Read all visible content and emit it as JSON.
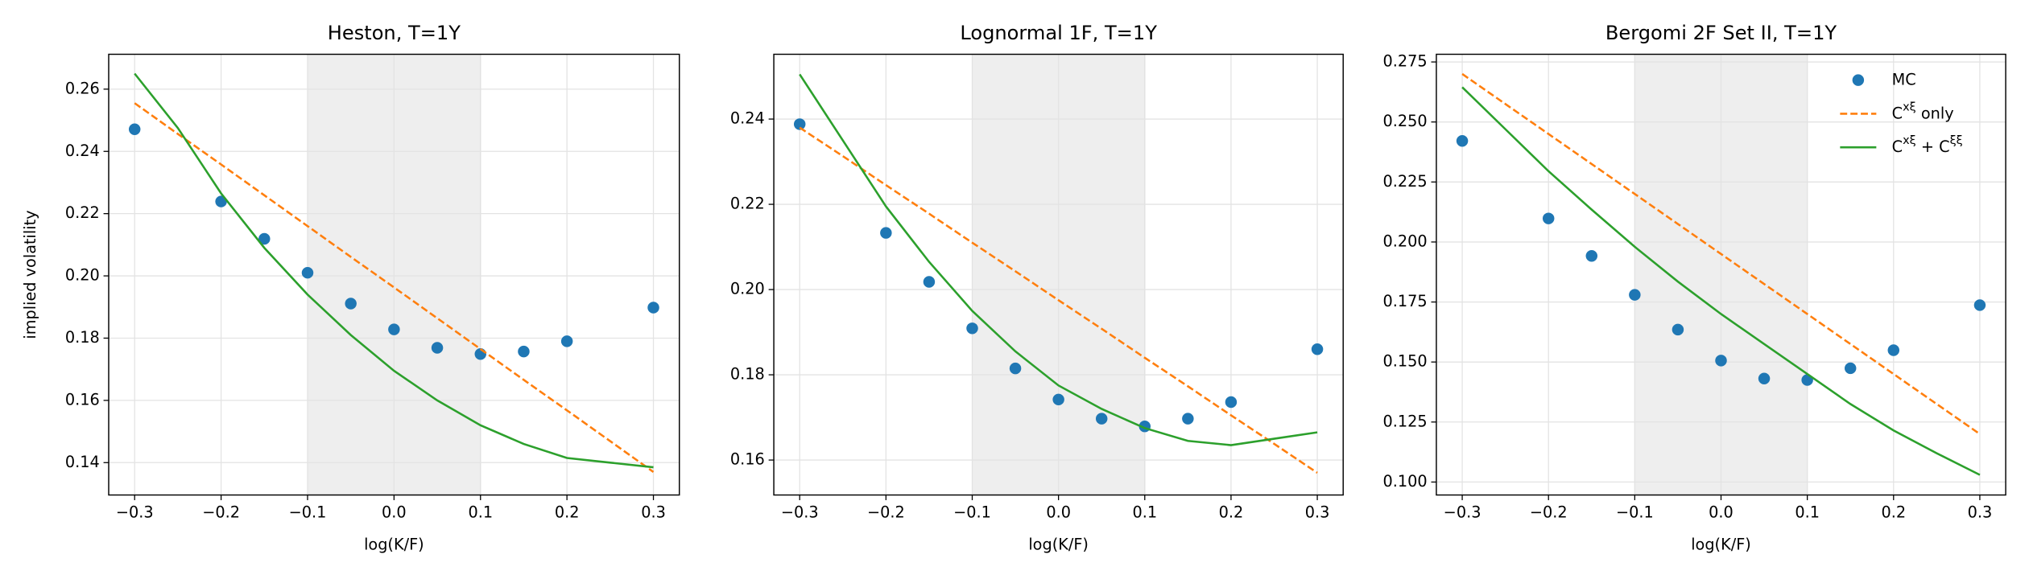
{
  "chart_data": [
    {
      "type": "line",
      "title": "Heston, T=1Y",
      "xlabel": "log(K/F)",
      "ylabel": "implied volatility",
      "xlim": [
        -0.33,
        0.33
      ],
      "ylim": [
        0.1296,
        0.2712
      ],
      "grid": true,
      "shade": [
        -0.1,
        0.1
      ],
      "xticks": [
        {
          "value": -0.3,
          "label": "−0.3"
        },
        {
          "value": -0.2,
          "label": "−0.2"
        },
        {
          "value": -0.1,
          "label": "−0.1"
        },
        {
          "value": 0,
          "label": "0.0"
        },
        0.1,
        0.2,
        0.3
      ],
      "yticks": [
        {
          "value": 0.14,
          "label": "0.14"
        },
        0.16,
        0.18,
        {
          "value": 0.2,
          "label": "0.20"
        },
        0.22,
        0.24,
        0.26
      ],
      "series": [
        {
          "name": "MC",
          "color": "#1f77b4",
          "linestyle": "none",
          "marker": "o",
          "x": [
            -0.3,
            -0.2,
            -0.15,
            -0.1,
            -0.05,
            0,
            0.05,
            0.1,
            0.15,
            0.2,
            0.3
          ],
          "values": [
            0.2471,
            0.2239,
            0.2119,
            0.201,
            0.1911,
            0.1828,
            0.1769,
            0.1749,
            0.1757,
            0.179,
            0.1898
          ]
        },
        {
          "name": "C^{xξ} only",
          "color": "#ff7f0e",
          "linestyle": "dashed",
          "x": [
            -0.3,
            -0.25,
            -0.2,
            -0.15,
            -0.1,
            -0.05,
            0,
            0.05,
            0.1,
            0.15,
            0.2,
            0.25,
            0.3
          ],
          "values": [
            0.2555,
            0.2456,
            0.2358,
            0.2259,
            0.216,
            0.2061,
            0.1963,
            0.1864,
            0.1765,
            0.1666,
            0.1568,
            0.1469,
            0.137
          ]
        },
        {
          "name": "C^{xξ} + C^{ξξ}",
          "color": "#2ca02c",
          "linestyle": "solid",
          "x": [
            -0.3,
            -0.25,
            -0.2,
            -0.15,
            -0.1,
            -0.05,
            0,
            0.05,
            0.1,
            0.15,
            0.2,
            0.25,
            0.3
          ],
          "values": [
            0.265,
            0.2475,
            0.2265,
            0.209,
            0.194,
            0.181,
            0.1695,
            0.16,
            0.152,
            0.146,
            0.1415,
            0.14,
            0.1385
          ]
        }
      ]
    },
    {
      "type": "line",
      "title": "Lognormal 1F, T=1Y",
      "xlabel": "log(K/F)",
      "xlim": [
        -0.33,
        0.33
      ],
      "ylim": [
        0.1518,
        0.2552
      ],
      "grid": true,
      "shade": [
        -0.1,
        0.1
      ],
      "xticks": [
        {
          "value": -0.3,
          "label": "−0.3"
        },
        {
          "value": -0.2,
          "label": "−0.2"
        },
        {
          "value": -0.1,
          "label": "−0.1"
        },
        {
          "value": 0,
          "label": "0.0"
        },
        0.1,
        0.2,
        0.3
      ],
      "yticks": [
        0.16,
        0.18,
        {
          "value": 0.2,
          "label": "0.20"
        },
        0.22,
        0.24
      ],
      "series": [
        {
          "name": "MC",
          "color": "#1f77b4",
          "linestyle": "none",
          "marker": "o",
          "x": [
            -0.3,
            -0.2,
            -0.15,
            -0.1,
            -0.05,
            0,
            0.05,
            0.1,
            0.15,
            0.2,
            0.3
          ],
          "values": [
            0.2388,
            0.2133,
            0.2018,
            0.1909,
            0.1815,
            0.1742,
            0.1697,
            0.1679,
            0.1697,
            0.1736,
            0.186
          ]
        },
        {
          "name": "C^{xξ} only",
          "color": "#ff7f0e",
          "linestyle": "dashed",
          "x": [
            -0.3,
            -0.25,
            -0.2,
            -0.15,
            -0.1,
            -0.05,
            0,
            0.05,
            0.1,
            0.15,
            0.2,
            0.25,
            0.3
          ],
          "values": [
            0.238,
            0.2313,
            0.2245,
            0.2178,
            0.211,
            0.2043,
            0.1975,
            0.1908,
            0.184,
            0.1773,
            0.1705,
            0.1638,
            0.157
          ]
        },
        {
          "name": "C^{xξ} + C^{ξξ}",
          "color": "#2ca02c",
          "linestyle": "solid",
          "x": [
            -0.3,
            -0.25,
            -0.2,
            -0.15,
            -0.1,
            -0.05,
            0,
            0.05,
            0.1,
            0.15,
            0.2,
            0.25,
            0.3
          ],
          "values": [
            0.2505,
            0.235,
            0.2195,
            0.2065,
            0.195,
            0.1855,
            0.1775,
            0.172,
            0.1675,
            0.1645,
            0.1635,
            0.165,
            0.1665
          ]
        }
      ]
    },
    {
      "type": "line",
      "title": "Bergomi 2F Set II, T=1Y",
      "xlabel": "log(K/F)",
      "xlim": [
        -0.33,
        0.33
      ],
      "ylim": [
        0.0946,
        0.2782
      ],
      "grid": true,
      "shade": [
        -0.1,
        0.1
      ],
      "legend": "upper right",
      "xticks": [
        {
          "value": -0.3,
          "label": "−0.3"
        },
        {
          "value": -0.2,
          "label": "−0.2"
        },
        {
          "value": -0.1,
          "label": "−0.1"
        },
        {
          "value": 0,
          "label": "0.0"
        },
        0.1,
        0.2,
        0.3
      ],
      "yticks": [
        {
          "value": 0.1,
          "label": "0.100"
        },
        0.125,
        {
          "value": 0.15,
          "label": "0.150"
        },
        0.175,
        {
          "value": 0.2,
          "label": "0.200"
        },
        0.225,
        {
          "value": 0.25,
          "label": "0.250"
        },
        0.275
      ],
      "series": [
        {
          "name": "MC",
          "color": "#1f77b4",
          "linestyle": "none",
          "marker": "o",
          "x": [
            -0.3,
            -0.2,
            -0.15,
            -0.1,
            -0.05,
            0,
            0.05,
            0.1,
            0.15,
            0.2,
            0.3
          ],
          "values": [
            0.2421,
            0.2098,
            0.1942,
            0.178,
            0.1635,
            0.1506,
            0.1431,
            0.1425,
            0.1474,
            0.1549,
            0.1737
          ]
        },
        {
          "name": "C^{xξ} only",
          "color": "#ff7f0e",
          "linestyle": "dashed",
          "x": [
            -0.3,
            -0.25,
            -0.2,
            -0.15,
            -0.1,
            -0.05,
            0,
            0.05,
            0.1,
            0.15,
            0.2,
            0.25,
            0.3
          ],
          "values": [
            0.27,
            0.2575,
            0.245,
            0.2325,
            0.22,
            0.2075,
            0.195,
            0.1825,
            0.17,
            0.1575,
            0.145,
            0.1325,
            0.12
          ]
        },
        {
          "name": "C^{xξ} + C^{ξξ}",
          "color": "#2ca02c",
          "linestyle": "solid",
          "x": [
            -0.3,
            -0.25,
            -0.2,
            -0.15,
            -0.1,
            -0.05,
            0,
            0.05,
            0.1,
            0.15,
            0.2,
            0.25,
            0.3
          ],
          "values": [
            0.2645,
            0.247,
            0.2295,
            0.2135,
            0.198,
            0.1835,
            0.17,
            0.1575,
            0.145,
            0.1325,
            0.1215,
            0.112,
            0.103
          ]
        }
      ]
    }
  ]
}
